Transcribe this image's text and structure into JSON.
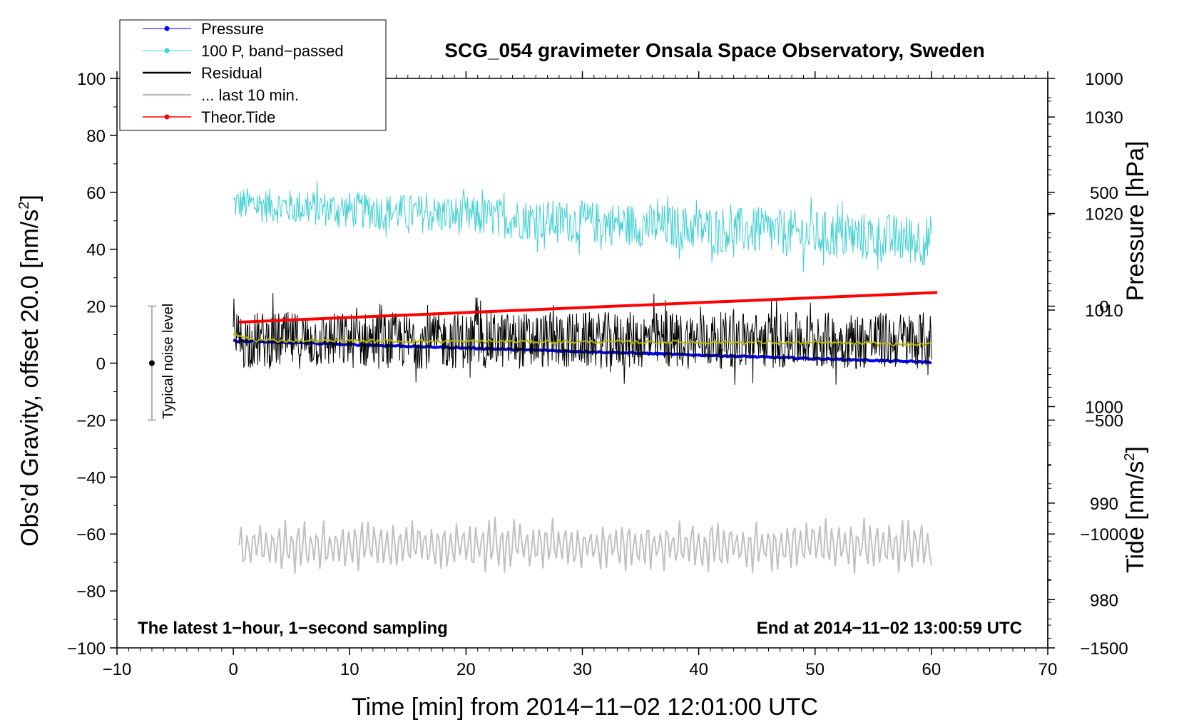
{
  "chart_data": {
    "type": "line",
    "title": "SCG_054 gravimeter Onsala Space Observatory, Sweden",
    "xlabel": "Time [min] from 2014−11−02 12:01:00 UTC",
    "ylabel": "Obs’d Gravity, offset 20.0 [nm/s",
    "ylabel_sup": "2",
    "ylabel_end": "]",
    "y2label": "Pressure [hPa]",
    "y3label": "Tide [nm/s",
    "y3label_sup": "2",
    "y3label_end": "]",
    "xlim": [
      -10,
      70
    ],
    "ylim": [
      -100,
      100
    ],
    "pressure_axis": {
      "range": [
        975,
        1034
      ],
      "ticks": [
        980,
        990,
        1000,
        1010,
        1020,
        1030
      ],
      "tick_labels": [
        "980",
        "990",
        "1000",
        "1010",
        "1020",
        "1030"
      ]
    },
    "tide_axis": {
      "range": [
        -1500,
        1000
      ],
      "ticks": [
        -1500,
        -1000,
        -500,
        0,
        500,
        1000
      ],
      "tick_labels": [
        "−1500",
        "−1000",
        "−500",
        "0",
        "500",
        "1000"
      ]
    },
    "x_ticks": [
      -10,
      0,
      10,
      20,
      30,
      40,
      50,
      60,
      70
    ],
    "x_tick_labels": [
      "−10",
      "0",
      "10",
      "20",
      "30",
      "40",
      "50",
      "60",
      "70"
    ],
    "y_ticks": [
      -100,
      -80,
      -60,
      -40,
      -20,
      0,
      20,
      40,
      60,
      80,
      100
    ],
    "y_tick_labels": [
      "−100",
      "−80",
      "−60",
      "−40",
      "−20",
      "0",
      "20",
      "40",
      "60",
      "80",
      "100"
    ],
    "legend": {
      "position": "top-left",
      "entries": [
        {
          "label": "Pressure",
          "color": "#0000ff"
        },
        {
          "label": "100 P, band−passed",
          "color": "#40d0d0"
        },
        {
          "label": "Residual",
          "color": "#000000"
        },
        {
          "label": "... last 10 min.",
          "color": "#c0c0c0"
        },
        {
          "label": "Theor.Tide",
          "color": "#ff0000"
        }
      ]
    },
    "annotations": {
      "left": "The latest 1−hour, 1−second sampling",
      "right": "End at 2014−11−02 13:00:59 UTC",
      "noise": "Typical noise level"
    },
    "noise_bar": {
      "x": -7,
      "center": 0,
      "low": -20,
      "high": 20
    },
    "series": [
      {
        "name": "Pressure",
        "axis": "pressure",
        "color": "#0000ff",
        "x": [
          0,
          60
        ],
        "values": [
          1006.8,
          1004.6
        ]
      },
      {
        "name": "100 P, band−passed",
        "axis": "gravity",
        "color": "#40d0d0",
        "x_range": [
          0,
          60
        ],
        "trend": [
          56,
          43
        ],
        "amplitude": [
          6,
          9
        ]
      },
      {
        "name": "Residual",
        "axis": "gravity",
        "color": "#000000",
        "x_range": [
          0,
          60
        ],
        "center": 8,
        "amplitude": 10
      },
      {
        "name": "Residual smoothed",
        "axis": "gravity",
        "color": "#b8b800",
        "x": [
          0,
          2,
          10,
          30,
          50,
          60
        ],
        "values": [
          10,
          8,
          7.8,
          7.5,
          7.2,
          6.5
        ]
      },
      {
        "name": "... last 10 min.",
        "axis": "gravity",
        "color": "#c0c0c0",
        "x_range": [
          0.5,
          60
        ],
        "center": -64,
        "amplitude": 8
      },
      {
        "name": "Theor.Tide",
        "axis": "tide",
        "color": "#ff0000",
        "x": [
          0.5,
          60.5
        ],
        "values": [
          -70,
          60
        ]
      }
    ],
    "colors": {
      "legend_border": "#000000",
      "noise_bar": "#b0b0b0"
    }
  }
}
